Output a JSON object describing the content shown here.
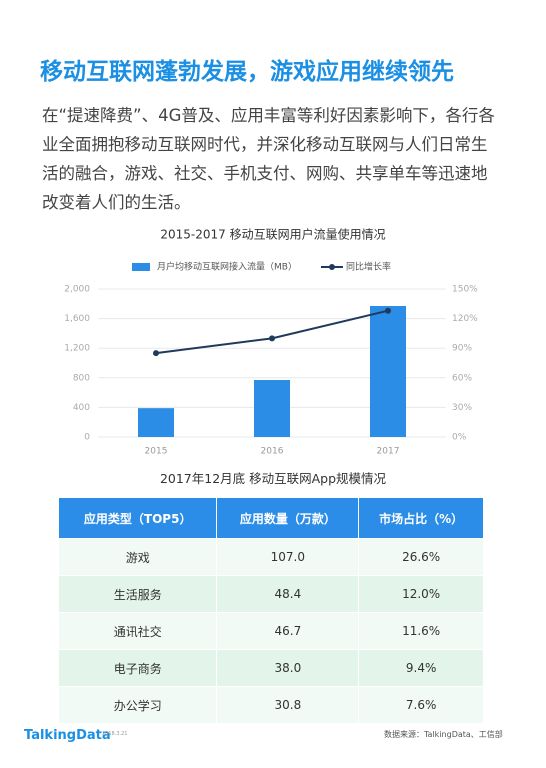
{
  "title": "移动互联网蓬勃发展，游戏应用继续领先",
  "paragraph": "在“提速降费”、4G普及、应用丰富等利好因素影响下，各行各业全面拥抱移动互联网时代，并深化移动互联网与人们日常生活的融合，游戏、社交、手机支付、网购、共享单车等迅速地改变着人们的生活。",
  "chart_data": {
    "type": "bar",
    "title": "2015-2017 移动互联网用户流量使用情况",
    "categories": [
      "2015",
      "2016",
      "2017"
    ],
    "series": [
      {
        "name": "月户均移动互联网接入流量（MB）",
        "type": "bar",
        "color": "#2b8de6",
        "values": [
          390,
          770,
          1770
        ]
      },
      {
        "name": "同比增长率",
        "type": "line",
        "color": "#1f3a5c",
        "axis": "y2",
        "values": [
          85,
          100,
          128
        ]
      }
    ],
    "ylim": [
      0,
      2000
    ],
    "yticks": [
      0,
      400,
      800,
      {
        "value": 1200,
        "label": "1,200"
      },
      {
        "value": 1600,
        "label": "1,600"
      },
      {
        "value": 2000,
        "label": "2,000"
      }
    ],
    "y2lim": [
      0,
      150
    ],
    "y2ticks": [
      {
        "value": 0,
        "label": "0%"
      },
      {
        "value": 30,
        "label": "30%"
      },
      {
        "value": 60,
        "label": "60%"
      },
      {
        "value": 90,
        "label": "90%"
      },
      {
        "value": 120,
        "label": "120%"
      },
      {
        "value": 150,
        "label": "150%"
      }
    ],
    "grid": true
  },
  "table": {
    "title": "2017年12月底 移动互联网App规模情况",
    "header": [
      "应用类型（TOP5）",
      "应用数量（万款）",
      "市场占比（%）"
    ],
    "rows": [
      [
        "游戏",
        "107.0",
        "26.6%"
      ],
      [
        "生活服务",
        "48.4",
        "12.0%"
      ],
      [
        "通讯社交",
        "46.7",
        "11.6%"
      ],
      [
        "电子商务",
        "38.0",
        "9.4%"
      ],
      [
        "办公学习",
        "30.8",
        "7.6%"
      ]
    ]
  },
  "footer": {
    "brand": "TalkingData",
    "date": "2018.3.21",
    "source": "数据来源：TalkingData、工信部"
  }
}
